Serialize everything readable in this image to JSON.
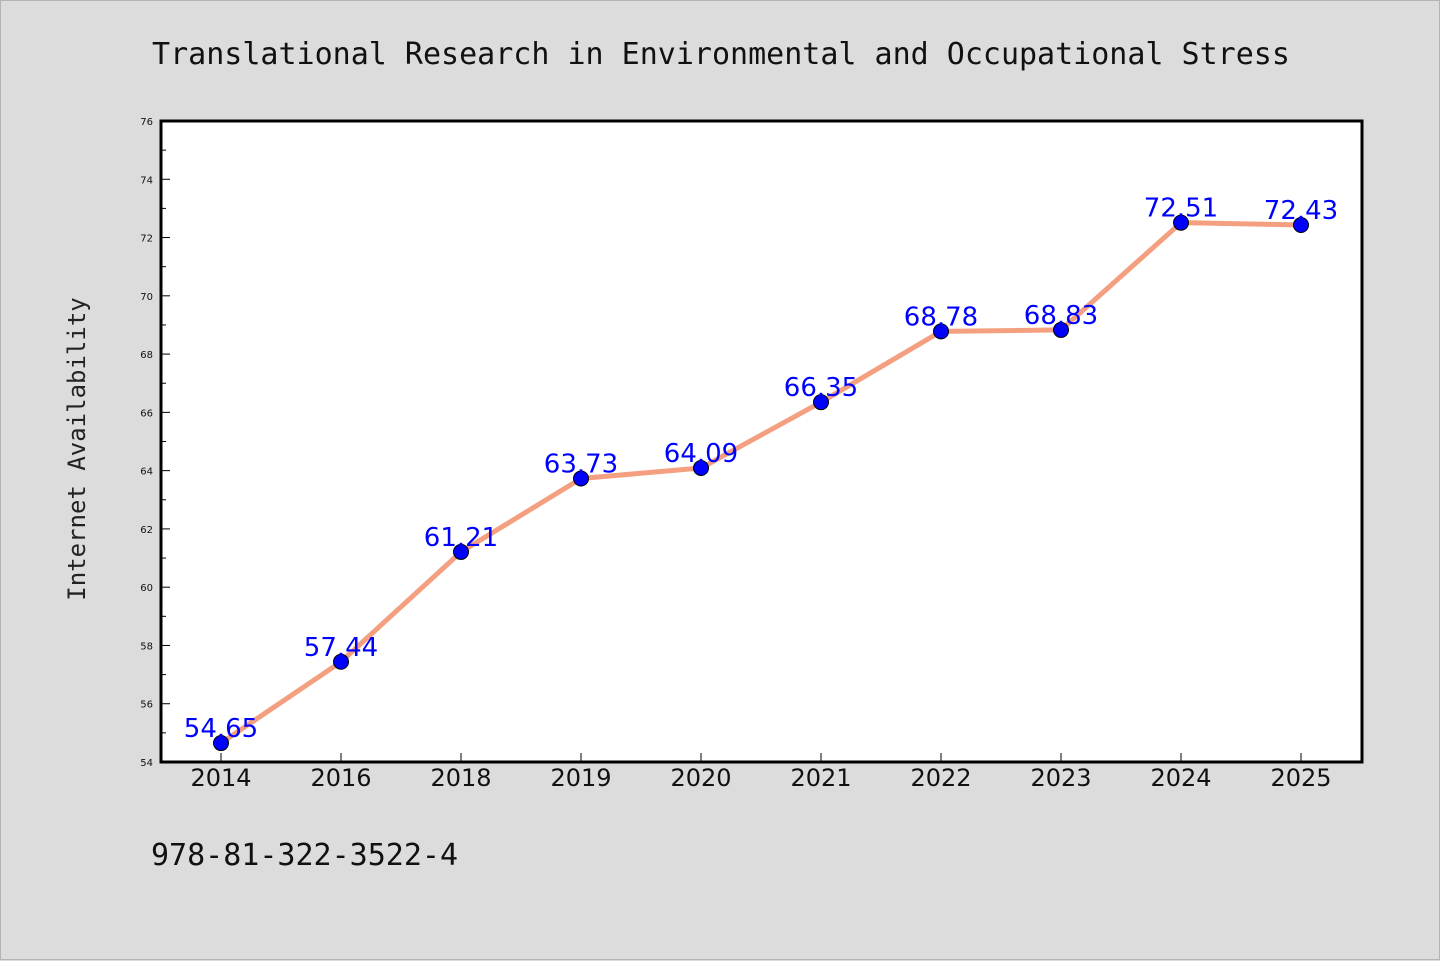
{
  "footer_text": "978-81-322-3522-4",
  "colors": {
    "line": "#f4a080",
    "marker": "#0000ff",
    "labels": "#0000ff",
    "background": "#dcdcdc",
    "plot_background": "#ffffff"
  },
  "chart_data": {
    "type": "line",
    "title": "Translational Research in Environmental and Occupational Stress",
    "xlabel": "",
    "ylabel": "Internet Availability",
    "categories": [
      "2014",
      "2016",
      "2018",
      "2019",
      "2020",
      "2021",
      "2022",
      "2023",
      "2024",
      "2025"
    ],
    "values": [
      54.65,
      57.44,
      61.21,
      63.73,
      64.09,
      66.35,
      68.78,
      68.83,
      72.51,
      72.43
    ],
    "data_labels": [
      "54.65",
      "57.44",
      "61.21",
      "63.73",
      "64.09",
      "66.35",
      "68.78",
      "68.83",
      "72.51",
      "72.43"
    ],
    "ylim": [
      54,
      76
    ],
    "yticks": [
      54,
      56,
      58,
      60,
      62,
      64,
      66,
      68,
      70,
      72,
      74,
      76
    ],
    "grid": false,
    "legend": "none"
  }
}
